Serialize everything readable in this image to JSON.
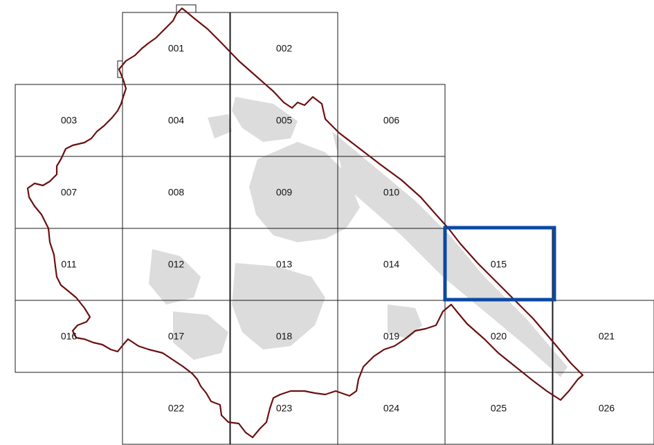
{
  "map": {
    "tiles": [
      {
        "id": "001",
        "label": "001"
      },
      {
        "id": "002",
        "label": "002"
      },
      {
        "id": "003",
        "label": "003"
      },
      {
        "id": "004",
        "label": "004"
      },
      {
        "id": "005",
        "label": "005"
      },
      {
        "id": "006",
        "label": "006"
      },
      {
        "id": "007",
        "label": "007"
      },
      {
        "id": "008",
        "label": "008"
      },
      {
        "id": "009",
        "label": "009"
      },
      {
        "id": "010",
        "label": "010"
      },
      {
        "id": "011",
        "label": "011"
      },
      {
        "id": "012",
        "label": "012"
      },
      {
        "id": "013",
        "label": "013"
      },
      {
        "id": "014",
        "label": "014"
      },
      {
        "id": "015",
        "label": "015"
      },
      {
        "id": "016",
        "label": "016"
      },
      {
        "id": "017",
        "label": "017"
      },
      {
        "id": "018",
        "label": "018"
      },
      {
        "id": "019",
        "label": "019"
      },
      {
        "id": "020",
        "label": "020"
      },
      {
        "id": "021",
        "label": "021"
      },
      {
        "id": "022",
        "label": "022"
      },
      {
        "id": "023",
        "label": "023"
      },
      {
        "id": "024",
        "label": "024"
      },
      {
        "id": "025",
        "label": "025"
      },
      {
        "id": "026",
        "label": "026"
      }
    ],
    "selected_tile": "015",
    "colors": {
      "grid": "#1a1a1a",
      "boundary": "#6b0f0f",
      "selection": "#0b4aa2",
      "urban_area": "#dcdcdc"
    }
  }
}
